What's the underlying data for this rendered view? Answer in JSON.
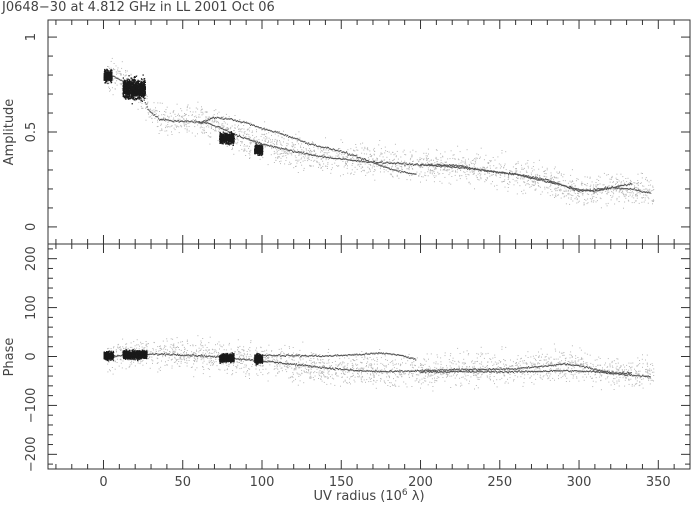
{
  "title": "J0648−30 at 4.812 GHz in LL  2001 Oct 06",
  "chart_data": [
    {
      "type": "scatter",
      "panel": "amplitude",
      "ylabel": "Amplitude",
      "xlim": [
        -35,
        370
      ],
      "ylim": [
        -0.09,
        1.09
      ],
      "yticks": [
        0,
        0.5,
        1
      ],
      "ytick_labels": [
        "0",
        "0.5",
        "1"
      ],
      "dense_clusters": [
        {
          "x": [
            0,
            5
          ],
          "y_mean": 0.8,
          "y_spread": 0.03
        },
        {
          "x": [
            12,
            26
          ],
          "y_mean": 0.73,
          "y_spread": 0.05
        },
        {
          "x": [
            73,
            82
          ],
          "y_mean": 0.47,
          "y_spread": 0.025
        },
        {
          "x": [
            95,
            100
          ],
          "y_mean": 0.41,
          "y_spread": 0.025
        }
      ],
      "model_tracks": [
        {
          "x": [
            2,
            10,
            20,
            25,
            28,
            35,
            45,
            55,
            65,
            75,
            85,
            100,
            120,
            140,
            160,
            180,
            200,
            220,
            240,
            260,
            280,
            290,
            300,
            310,
            320,
            335,
            345
          ],
          "y": [
            0.81,
            0.78,
            0.73,
            0.68,
            0.62,
            0.57,
            0.56,
            0.56,
            0.55,
            0.52,
            0.48,
            0.44,
            0.4,
            0.37,
            0.35,
            0.34,
            0.33,
            0.32,
            0.3,
            0.28,
            0.25,
            0.22,
            0.19,
            0.2,
            0.21,
            0.2,
            0.18
          ]
        },
        {
          "x": [
            60,
            70,
            80,
            90,
            100,
            110,
            120,
            130,
            140,
            150,
            160,
            170,
            180,
            190,
            197
          ],
          "y": [
            0.55,
            0.58,
            0.57,
            0.55,
            0.52,
            0.5,
            0.47,
            0.44,
            0.42,
            0.4,
            0.37,
            0.34,
            0.31,
            0.29,
            0.28
          ]
        },
        {
          "x": [
            200,
            220,
            240,
            260,
            280,
            300,
            310,
            320,
            333
          ],
          "y": [
            0.33,
            0.33,
            0.3,
            0.28,
            0.24,
            0.2,
            0.19,
            0.21,
            0.23
          ]
        }
      ]
    },
    {
      "type": "scatter",
      "panel": "phase",
      "xlabel": "UV radius  (10",
      "xlabel_exp": "6",
      "xlabel_unit": " λ)",
      "ylabel": "Phase",
      "xlim": [
        -35,
        370
      ],
      "ylim": [
        -230,
        230
      ],
      "xticks": [
        0,
        50,
        100,
        150,
        200,
        250,
        300,
        350
      ],
      "xtick_labels": [
        "0",
        "50",
        "100",
        "150",
        "200",
        "250",
        "300",
        "350"
      ],
      "yticks": [
        -200,
        -100,
        0,
        100,
        200
      ],
      "ytick_labels": [
        "−200",
        "−100",
        "0",
        "100",
        "200"
      ],
      "dense_clusters": [
        {
          "x": [
            0,
            6
          ],
          "y_mean": 3,
          "y_spread": 8
        },
        {
          "x": [
            12,
            27
          ],
          "y_mean": 5,
          "y_spread": 8
        },
        {
          "x": [
            73,
            82
          ],
          "y_mean": -2,
          "y_spread": 8
        },
        {
          "x": [
            95,
            100
          ],
          "y_mean": -4,
          "y_spread": 9
        }
      ],
      "model_tracks": [
        {
          "x": [
            2,
            20,
            40,
            60,
            80,
            100,
            120,
            140,
            160,
            180,
            200,
            220,
            240,
            260,
            280,
            290,
            300,
            310,
            320,
            333
          ],
          "y": [
            2,
            5,
            6,
            3,
            -2,
            -8,
            -15,
            -22,
            -28,
            -30,
            -28,
            -26,
            -25,
            -24,
            -18,
            -14,
            -18,
            -25,
            -32,
            -32
          ]
        },
        {
          "x": [
            100,
            120,
            140,
            160,
            175,
            185,
            197
          ],
          "y": [
            4,
            3,
            2,
            5,
            8,
            5,
            -5
          ]
        },
        {
          "x": [
            200,
            230,
            260,
            290,
            310,
            330,
            345
          ],
          "y": [
            -30,
            -30,
            -30,
            -28,
            -30,
            -36,
            -40
          ]
        }
      ]
    }
  ]
}
